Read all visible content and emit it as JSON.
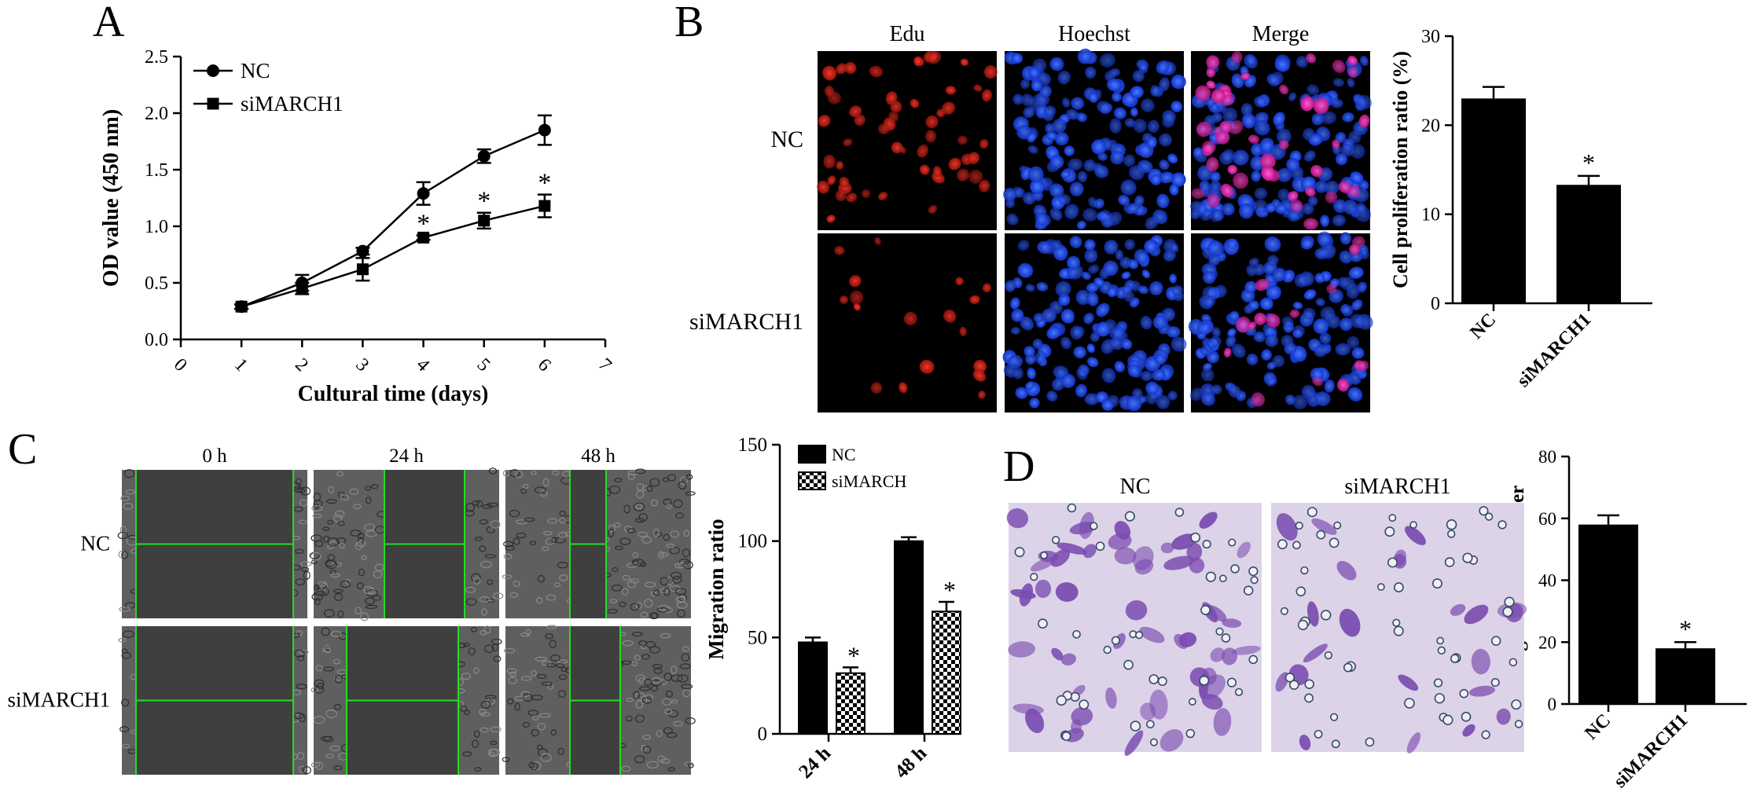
{
  "panels": {
    "A": "A",
    "B": "B",
    "C": "C",
    "D": "D"
  },
  "micrographs": {
    "B": {
      "columns": [
        "Edu",
        "Hoechst",
        "Merge"
      ],
      "rows": [
        "NC",
        "siMARCH1"
      ]
    },
    "C": {
      "columns": [
        "0 h",
        "24 h",
        "48 h"
      ],
      "rows": [
        "NC",
        "siMARCH1"
      ]
    },
    "D": {
      "columns": [
        "NC",
        "siMARCH1"
      ]
    }
  },
  "colors": {
    "ink": "#000000",
    "edu_nuclei": "#e02010",
    "hoechst_nuclei": "#1e4fff",
    "merge_nuclei": "#ff2aa8",
    "scratch_line": "#22dd22",
    "stain": "#7a4cb0",
    "stain_bg": "#ddd3e8",
    "phase_bg": "#3f3f3f"
  },
  "chart_data": [
    {
      "id": "A",
      "type": "line",
      "xlabel": "Cultural time (days)",
      "ylabel": "OD value (450 nm)",
      "xlim": [
        0,
        7
      ],
      "ylim": [
        0,
        2.5
      ],
      "xticks": [
        "0",
        "1",
        "2",
        "3",
        "4",
        "5",
        "6",
        "7"
      ],
      "yticks": [
        "0.0",
        "0.5",
        "1.0",
        "1.5",
        "2.0",
        "2.5"
      ],
      "legend": "top-left",
      "series": [
        {
          "name": "NC",
          "marker": "circle",
          "x": [
            1,
            2,
            3,
            4,
            5,
            6
          ],
          "values": [
            0.29,
            0.5,
            0.78,
            1.29,
            1.62,
            1.85
          ],
          "errors": [
            0.02,
            0.07,
            0.03,
            0.1,
            0.06,
            0.13
          ]
        },
        {
          "name": "siMARCH1",
          "marker": "square",
          "x": [
            1,
            2,
            3,
            4,
            5,
            6
          ],
          "values": [
            0.29,
            0.45,
            0.62,
            0.9,
            1.05,
            1.18
          ],
          "errors": [
            0.02,
            0.05,
            0.1,
            0.02,
            0.07,
            0.1
          ]
        }
      ],
      "annotations": [
        {
          "x": 4,
          "text": "*"
        },
        {
          "x": 5,
          "text": "*"
        },
        {
          "x": 6,
          "text": "*"
        }
      ]
    },
    {
      "id": "B",
      "type": "bar",
      "ylabel": "Cell proliferation ratio (%)",
      "ylim": [
        0,
        30
      ],
      "yticks": [
        "0",
        "10",
        "20",
        "30"
      ],
      "categories": [
        "NC",
        "siMARCH1"
      ],
      "values": [
        23,
        13.3
      ],
      "errors": [
        1.3,
        1.0
      ],
      "annotations": [
        {
          "category": "siMARCH1",
          "text": "*"
        }
      ]
    },
    {
      "id": "C",
      "type": "bar",
      "ylabel": "Migration ratio",
      "ylim": [
        0,
        150
      ],
      "yticks": [
        "0",
        "50",
        "100",
        "150"
      ],
      "categories": [
        "24 h",
        "48 h"
      ],
      "legend": "top-center",
      "series": [
        {
          "name": "NC",
          "pattern": "solid",
          "values": [
            47.5,
            100
          ],
          "errors": [
            2.5,
            2
          ]
        },
        {
          "name": "siMARCH",
          "pattern": "checker",
          "values": [
            31.5,
            63.5
          ],
          "errors": [
            3,
            5
          ]
        }
      ],
      "annotations": [
        {
          "category": "24 h",
          "text": "*"
        },
        {
          "category": "48 h",
          "text": "*"
        }
      ]
    },
    {
      "id": "D",
      "type": "bar",
      "ylabel": "Migration cell number",
      "ylim": [
        0,
        80
      ],
      "yticks": [
        "0",
        "20",
        "40",
        "60",
        "80"
      ],
      "categories": [
        "NC",
        "siMARCH1"
      ],
      "values": [
        58,
        18
      ],
      "errors": [
        3,
        2
      ],
      "annotations": [
        {
          "category": "siMARCH1",
          "text": "*"
        }
      ]
    }
  ]
}
